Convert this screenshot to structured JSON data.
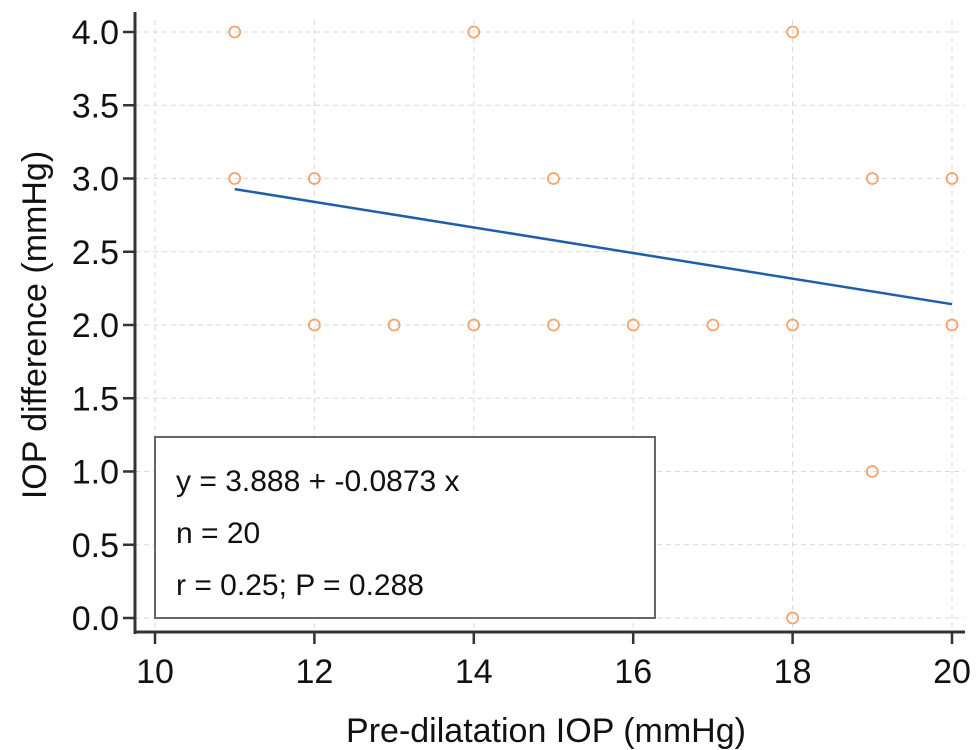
{
  "chart_data": {
    "type": "scatter",
    "title": "",
    "xlabel": "Pre-dilatation IOP (mmHg)",
    "ylabel": "IOP difference (mmHg)",
    "xlim": [
      10,
      20
    ],
    "ylim": [
      0,
      4
    ],
    "x_ticks": [
      10,
      12,
      14,
      16,
      18,
      20
    ],
    "x_tick_labels": [
      "10",
      "12",
      "14",
      "16",
      "18",
      "20"
    ],
    "y_ticks": [
      0,
      0.5,
      1,
      1.5,
      2,
      2.5,
      3,
      3.5,
      4
    ],
    "y_tick_labels": [
      "0.0",
      "0.5",
      "1.0",
      "1.5",
      "2.0",
      "2.5",
      "3.0",
      "3.5",
      "4.0"
    ],
    "grid": true,
    "points": [
      {
        "x": 11,
        "y": 4
      },
      {
        "x": 14,
        "y": 4
      },
      {
        "x": 18,
        "y": 4
      },
      {
        "x": 11,
        "y": 3
      },
      {
        "x": 12,
        "y": 3
      },
      {
        "x": 15,
        "y": 3
      },
      {
        "x": 19,
        "y": 3
      },
      {
        "x": 20,
        "y": 3
      },
      {
        "x": 12,
        "y": 2
      },
      {
        "x": 13,
        "y": 2
      },
      {
        "x": 14,
        "y": 2
      },
      {
        "x": 15,
        "y": 2
      },
      {
        "x": 16,
        "y": 2
      },
      {
        "x": 17,
        "y": 2
      },
      {
        "x": 18,
        "y": 2
      },
      {
        "x": 20,
        "y": 2
      },
      {
        "x": 19,
        "y": 1
      },
      {
        "x": 18,
        "y": 0
      }
    ],
    "regression_line": {
      "intercept": 3.888,
      "slope": -0.0873,
      "x_range": [
        11,
        20
      ]
    },
    "annotation": {
      "lines": [
        "y = 3.888 + -0.0873 x",
        "n = 20",
        "r = 0.25; P = 0.288"
      ]
    },
    "colors": {
      "points": "#f4a46a",
      "line": "#1f5fa8",
      "grid": "#d9d9d9",
      "axis": "#333333"
    }
  }
}
